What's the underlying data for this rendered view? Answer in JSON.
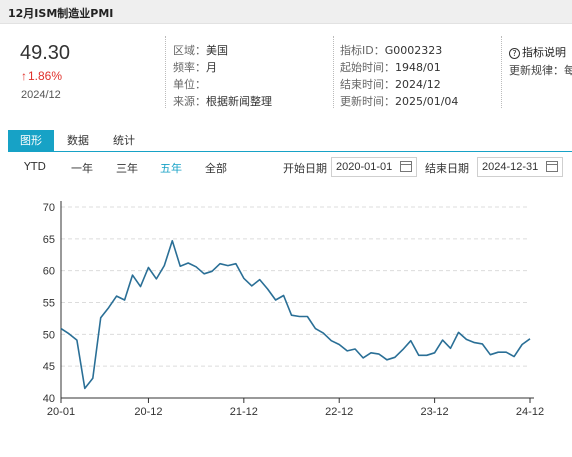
{
  "title": "12月ISM制造业PMI",
  "summary": {
    "value": "49.30",
    "change": "1.86%",
    "date": "2024/12"
  },
  "meta": {
    "region_k": "区域：",
    "region_v": "美国",
    "freq_k": "频率：",
    "freq_v": "月",
    "unit_k": "单位：",
    "unit_v": "",
    "source_k": "来源：",
    "source_v": "根据新闻整理",
    "id_k": "指标ID：",
    "id_v": "G0002323",
    "start_k": "起始时间：",
    "start_v": "1948/01",
    "end_k": "结束时间：",
    "end_v": "2024/12",
    "update_k": "更新时间：",
    "update_v": "2025/01/04",
    "help_label": "指标说明",
    "rule_k": "更新规律：",
    "rule_v": "每"
  },
  "tabs": [
    "图形",
    "数据",
    "统计"
  ],
  "ranges": [
    "YTD",
    "一年",
    "三年",
    "五年",
    "全部"
  ],
  "active_range": "五年",
  "date_range": {
    "start_label": "开始日期",
    "start": "2020-01-01",
    "end_label": "结束日期",
    "end": "2024-12-31"
  },
  "colors": {
    "accent": "#17a2c6",
    "line": "#2a6f96",
    "down": "#e0302a"
  },
  "chart_data": {
    "type": "line",
    "x_ticks": [
      "20-01",
      "20-12",
      "21-12",
      "22-12",
      "23-12",
      "24-12"
    ],
    "ylim": [
      40,
      70
    ],
    "y_ticks": [
      40,
      45,
      50,
      55,
      60,
      65,
      70
    ],
    "grid": true,
    "series": [
      {
        "x": [
          "2020-01",
          "2020-02",
          "2020-03",
          "2020-04",
          "2020-05",
          "2020-06",
          "2020-07",
          "2020-08",
          "2020-09",
          "2020-10",
          "2020-11",
          "2020-12",
          "2021-01",
          "2021-02",
          "2021-03",
          "2021-04",
          "2021-05",
          "2021-06",
          "2021-07",
          "2021-08",
          "2021-09",
          "2021-10",
          "2021-11",
          "2021-12",
          "2022-01",
          "2022-02",
          "2022-03",
          "2022-04",
          "2022-05",
          "2022-06",
          "2022-07",
          "2022-08",
          "2022-09",
          "2022-10",
          "2022-11",
          "2022-12",
          "2023-01",
          "2023-02",
          "2023-03",
          "2023-04",
          "2023-05",
          "2023-06",
          "2023-07",
          "2023-08",
          "2023-09",
          "2023-10",
          "2023-11",
          "2023-12",
          "2024-01",
          "2024-02",
          "2024-03",
          "2024-04",
          "2024-05",
          "2024-06",
          "2024-07",
          "2024-08",
          "2024-09",
          "2024-10",
          "2024-11",
          "2024-12"
        ],
        "values": [
          50.9,
          50.1,
          49.1,
          41.5,
          43.1,
          52.6,
          54.2,
          56.0,
          55.4,
          59.3,
          57.5,
          60.5,
          58.7,
          60.8,
          64.7,
          60.7,
          61.2,
          60.6,
          59.5,
          59.9,
          61.1,
          60.8,
          61.1,
          58.8,
          57.6,
          58.6,
          57.1,
          55.4,
          56.1,
          53.0,
          52.8,
          52.8,
          50.9,
          50.2,
          49.0,
          48.4,
          47.4,
          47.7,
          46.3,
          47.1,
          46.9,
          46.0,
          46.4,
          47.6,
          49.0,
          46.7,
          46.7,
          47.1,
          49.1,
          47.8,
          50.3,
          49.2,
          48.7,
          48.5,
          46.8,
          47.2,
          47.2,
          46.5,
          48.4,
          49.3
        ]
      }
    ]
  }
}
